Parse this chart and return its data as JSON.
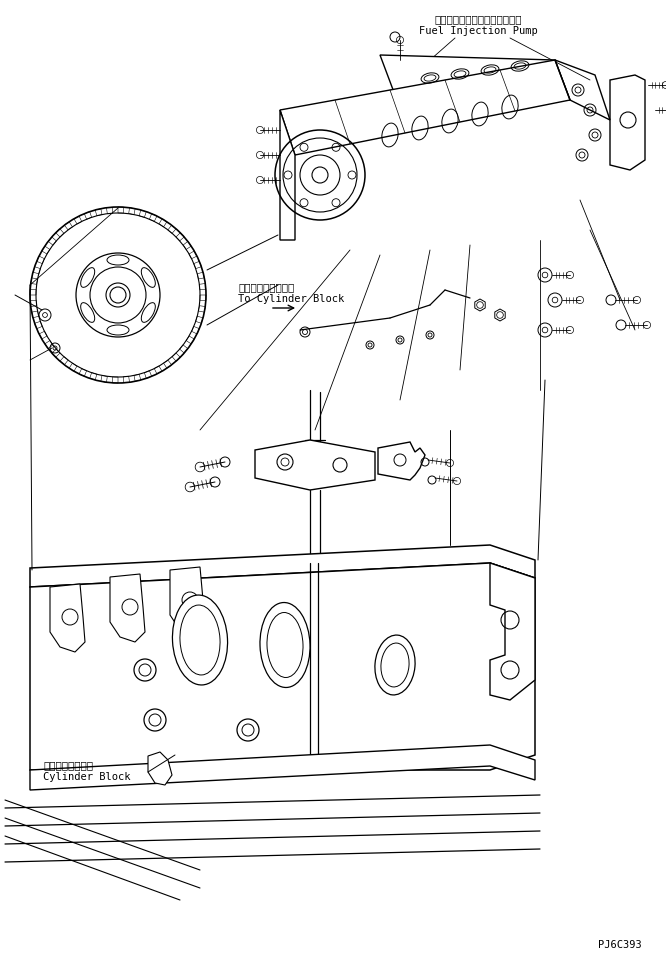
{
  "background_color": "#ffffff",
  "fig_width": 6.66,
  "fig_height": 9.6,
  "dpi": 100,
  "label_fuel_pump_jp": "フェルインジェクションポンプ",
  "label_fuel_pump_en": "Fuel Injection Pump",
  "label_cylinder_block_jp": "シリンダブロック",
  "label_cylinder_block_en": "Cylinder Block",
  "label_to_cylinder_jp": "シリンダブロックヘ",
  "label_to_cylinder_en": "To Cylinder Block",
  "label_part_number": "PJ6C393",
  "line_color": "#000000",
  "line_width": 0.8,
  "font_size_label": 7.5,
  "font_size_part": 7.0,
  "font_family": "monospace"
}
